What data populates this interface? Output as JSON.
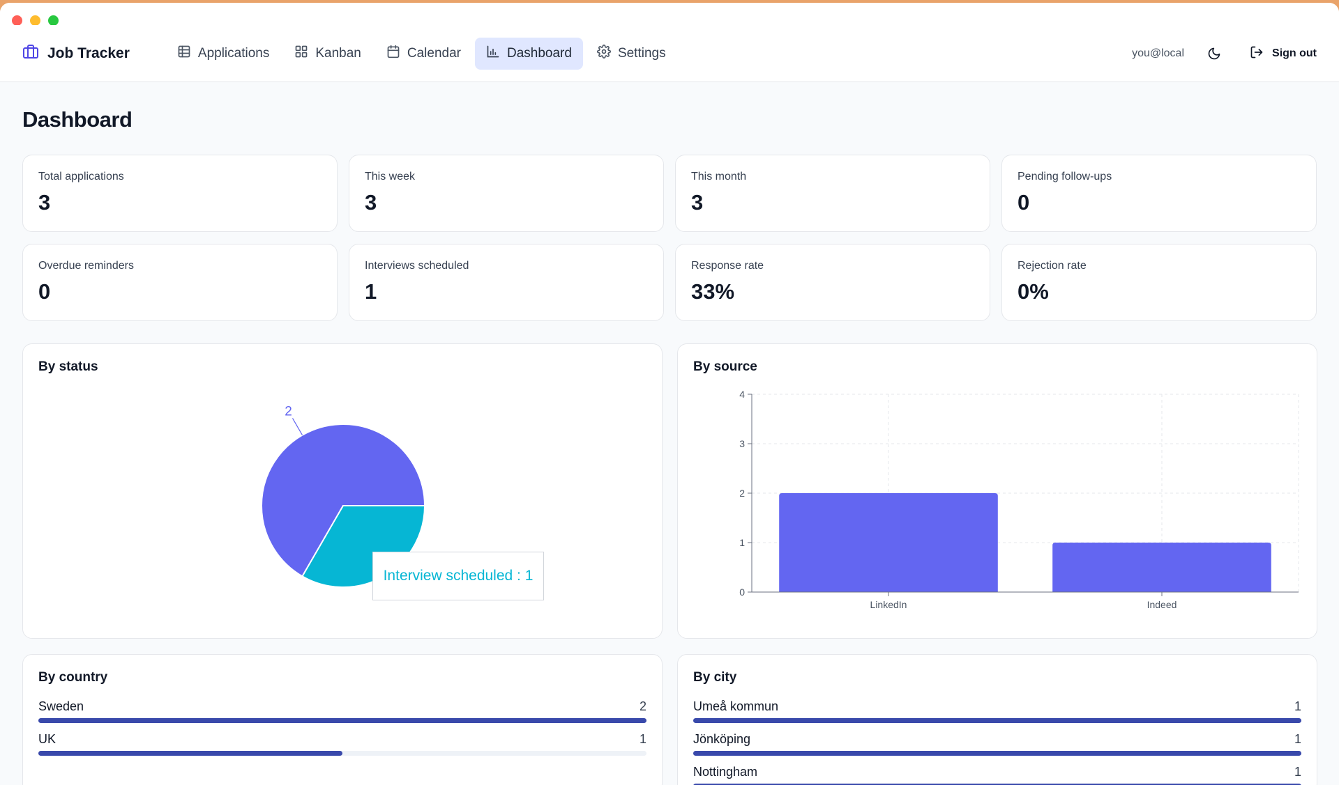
{
  "app": {
    "brand": "Job Tracker",
    "brand_icon": "briefcase-icon",
    "nav": [
      {
        "label": "Applications",
        "icon": "table-icon",
        "active": false
      },
      {
        "label": "Kanban",
        "icon": "grid-icon",
        "active": false
      },
      {
        "label": "Calendar",
        "icon": "calendar-icon",
        "active": false
      },
      {
        "label": "Dashboard",
        "icon": "bar-chart-icon",
        "active": true
      },
      {
        "label": "Settings",
        "icon": "gear-icon",
        "active": false
      }
    ],
    "user_email": "you@local",
    "theme_icon": "moon-icon",
    "sign_out": "Sign out",
    "sign_out_icon": "logout-icon"
  },
  "page": {
    "title": "Dashboard"
  },
  "stats": [
    {
      "label": "Total applications",
      "value": "3"
    },
    {
      "label": "This week",
      "value": "3"
    },
    {
      "label": "This month",
      "value": "3"
    },
    {
      "label": "Pending follow-ups",
      "value": "0"
    },
    {
      "label": "Overdue reminders",
      "value": "0"
    },
    {
      "label": "Interviews scheduled",
      "value": "1"
    },
    {
      "label": "Response rate",
      "value": "33%"
    },
    {
      "label": "Rejection rate",
      "value": "0%"
    }
  ],
  "panels": {
    "by_status": {
      "title": "By status",
      "tooltip": "Interview scheduled : 1"
    },
    "by_source": {
      "title": "By source"
    },
    "by_country": {
      "title": "By country",
      "rows": [
        {
          "label": "Sweden",
          "count": "2",
          "fraction": 1.0
        },
        {
          "label": "UK",
          "count": "1",
          "fraction": 0.5
        }
      ]
    },
    "by_city": {
      "title": "By city",
      "rows": [
        {
          "label": "Umeå kommun",
          "count": "1",
          "fraction": 1.0
        },
        {
          "label": "Jönköping",
          "count": "1",
          "fraction": 1.0
        },
        {
          "label": "Nottingham",
          "count": "1",
          "fraction": 1.0
        }
      ]
    }
  },
  "colors": {
    "accent": "#6366f1",
    "cyan": "#06b6d4",
    "bar_fill": "#3949ab",
    "active_nav_bg": "#e0e7ff"
  },
  "chart_data": [
    {
      "type": "pie",
      "labels": [
        "",
        "Interview scheduled"
      ],
      "values": [
        2,
        1
      ],
      "data_labels": [
        "2",
        ""
      ],
      "colors": [
        "#6366f1",
        "#06b6d4"
      ]
    },
    {
      "type": "bar",
      "categories": [
        "LinkedIn",
        "Indeed"
      ],
      "values": [
        2,
        1
      ],
      "ylim": [
        0,
        4
      ],
      "yticks": [
        "0",
        "1",
        "2",
        "3",
        "4"
      ],
      "grid": true,
      "color": "#6366f1"
    }
  ]
}
